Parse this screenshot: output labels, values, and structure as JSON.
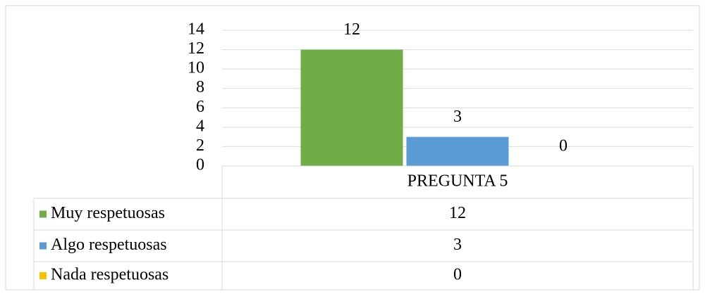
{
  "chart_data": {
    "type": "bar",
    "categories": [
      "PREGUNTA 5"
    ],
    "series": [
      {
        "name": "Muy respetuosas",
        "color": "#70ad47",
        "values": [
          12
        ]
      },
      {
        "name": "Algo respetuosas",
        "color": "#5b9bd5",
        "values": [
          3
        ]
      },
      {
        "name": "Nada respetuosas",
        "color": "#ffc000",
        "values": [
          0
        ]
      }
    ],
    "ylim": [
      0,
      14
    ],
    "yticks": [
      0,
      2,
      4,
      6,
      8,
      10,
      12,
      14
    ],
    "grid": true,
    "data_table": true
  }
}
